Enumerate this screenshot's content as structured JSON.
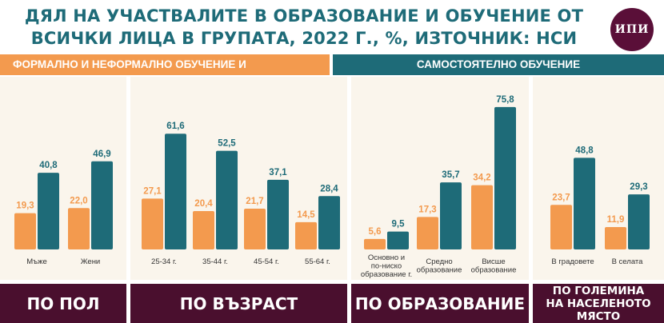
{
  "title": "ДЯЛ НА УЧАСТВАЛИТЕ В ОБРАЗОВАНИЕ И ОБУЧЕНИЕ ОТ ВСИЧКИ ЛИЦА В ГРУПАТА, 2022 Г., %, ИЗТОЧНИК: НСИ",
  "logo_text": "ИПИ",
  "legend": {
    "formal": "ФОРМАЛНО И НЕФОРМАЛНО ОБУЧЕНИЕ И ОБРАЗОВАНИЕ",
    "self": "САМОСТОЯТЕЛНО ОБУЧЕНИЕ"
  },
  "colors": {
    "formal": "#f39a4e",
    "self": "#1e6b78",
    "category_bar": "#4a0f2e",
    "panel_bg": "#faf5ec",
    "title": "#1e6b78"
  },
  "chart_data": {
    "type": "bar",
    "title": "ДЯЛ НА УЧАСТВАЛИТЕ В ОБРАЗОВАНИЕ И ОБУЧЕНИЕ ОТ ВСИЧКИ ЛИЦА В ГРУПАТА, 2022 Г., %, ИЗТОЧНИК: НСИ",
    "ylim": [
      0,
      80
    ],
    "series_names": [
      "ФОРМАЛНО И НЕФОРМАЛНО ОБУЧЕНИЕ И ОБРАЗОВАНИЕ",
      "САМОСТОЯТЕЛНО ОБУЧЕНИЕ"
    ],
    "groups": [
      {
        "name": "ПО ПОЛ",
        "categories": [
          "Мъже",
          "Жени"
        ],
        "formal": [
          19.3,
          22.0
        ],
        "self": [
          40.8,
          46.9
        ]
      },
      {
        "name": "ПО ВЪЗРАСТ",
        "categories": [
          "25-34 г.",
          "35-44 г.",
          "45-54 г.",
          "55-64 г."
        ],
        "formal": [
          27.1,
          20.4,
          21.7,
          14.5
        ],
        "self": [
          61.6,
          52.5,
          37.1,
          28.4
        ]
      },
      {
        "name": "ПО ОБРАЗОВАНИЕ",
        "categories": [
          "Основно и по-ниско образование г.",
          "Средно образование",
          "Висше образование"
        ],
        "formal": [
          5.6,
          17.3,
          34.2
        ],
        "self": [
          9.5,
          35.7,
          75.8
        ]
      },
      {
        "name": "ПО ГОЛЕМИНА НА НАСЕЛЕНОТО МЯСТО",
        "categories": [
          "В градовете",
          "В селата"
        ],
        "formal": [
          23.7,
          11.9
        ],
        "self": [
          48.8,
          29.3
        ]
      }
    ]
  }
}
